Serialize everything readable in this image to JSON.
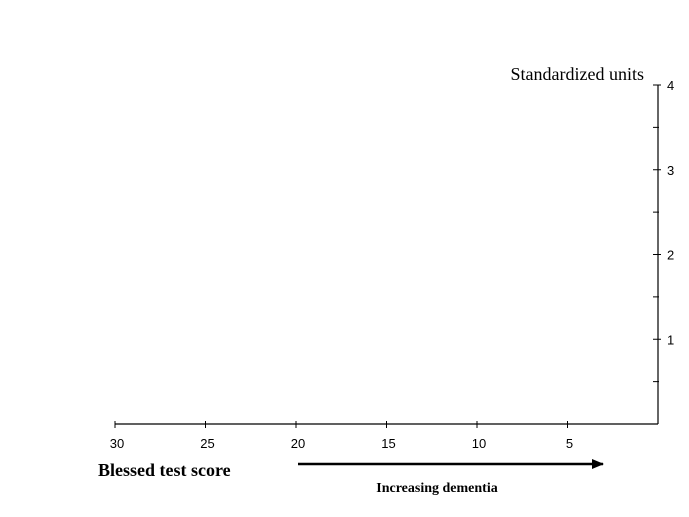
{
  "chart_data": {
    "type": "line",
    "title": "",
    "xlabel": "Blessed test score",
    "ylabel": "Standardized units",
    "x_ticks": [
      30,
      25,
      20,
      15,
      10,
      5
    ],
    "xlim": [
      30,
      0
    ],
    "x_reversed": true,
    "y_ticks": [
      1,
      2,
      3,
      4
    ],
    "ylim": [
      0,
      4
    ],
    "y_minor_ticks": [
      0.5,
      1.5,
      2.5,
      3.5
    ],
    "y_axis_position": "right",
    "grid": false,
    "series": [],
    "annotation": {
      "text": "Increasing dementia",
      "arrow_direction": "right"
    }
  }
}
